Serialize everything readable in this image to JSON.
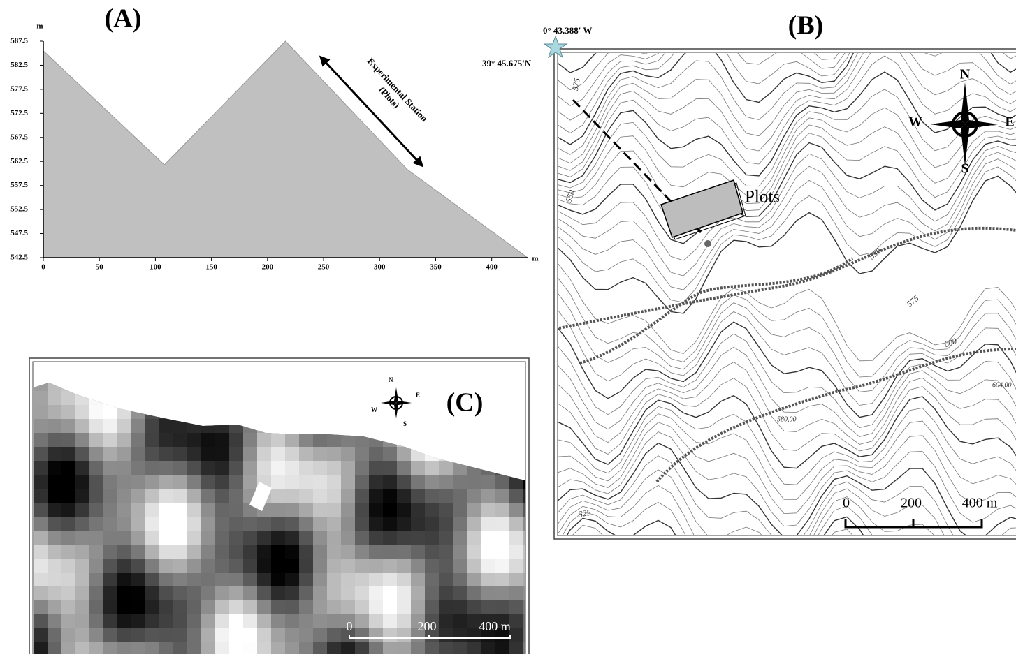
{
  "chart_data": {
    "type": "area",
    "title": "(A)",
    "x_unit": "m",
    "y_unit": "m",
    "x": [
      0,
      108,
      216,
      325,
      432
    ],
    "values": [
      585.5,
      561.8,
      587.5,
      560.8,
      542.5
    ],
    "color": "#c0c0c0",
    "xlim": [
      0,
      432
    ],
    "ylim": [
      542.5,
      587.5
    ],
    "xticks": [
      0,
      50,
      100,
      150,
      200,
      250,
      300,
      350,
      400
    ],
    "yticks": [
      542.5,
      547.5,
      552.5,
      557.5,
      562.5,
      567.5,
      572.5,
      577.5,
      582.5,
      587.5
    ],
    "annotation": [
      "Experimental Station",
      "(Plots)"
    ]
  },
  "panel_b": {
    "label": "(B)",
    "longitude": "0° 43.388' W",
    "latitude": "39° 45.675'N",
    "plots_label": "Plots",
    "compass": {
      "n": "N",
      "e": "E",
      "s": "S",
      "w": "W"
    },
    "scale": [
      "0",
      "200",
      "400 m"
    ],
    "contour_labels": [
      "575",
      "550",
      "550",
      "575",
      "600",
      "580,00",
      "604,00",
      "525"
    ]
  },
  "panel_c": {
    "label": "(C)",
    "compass": {
      "n": "N",
      "e": "E",
      "s": "S",
      "w": "W"
    },
    "scale": [
      "0",
      "200",
      "400 m"
    ]
  }
}
